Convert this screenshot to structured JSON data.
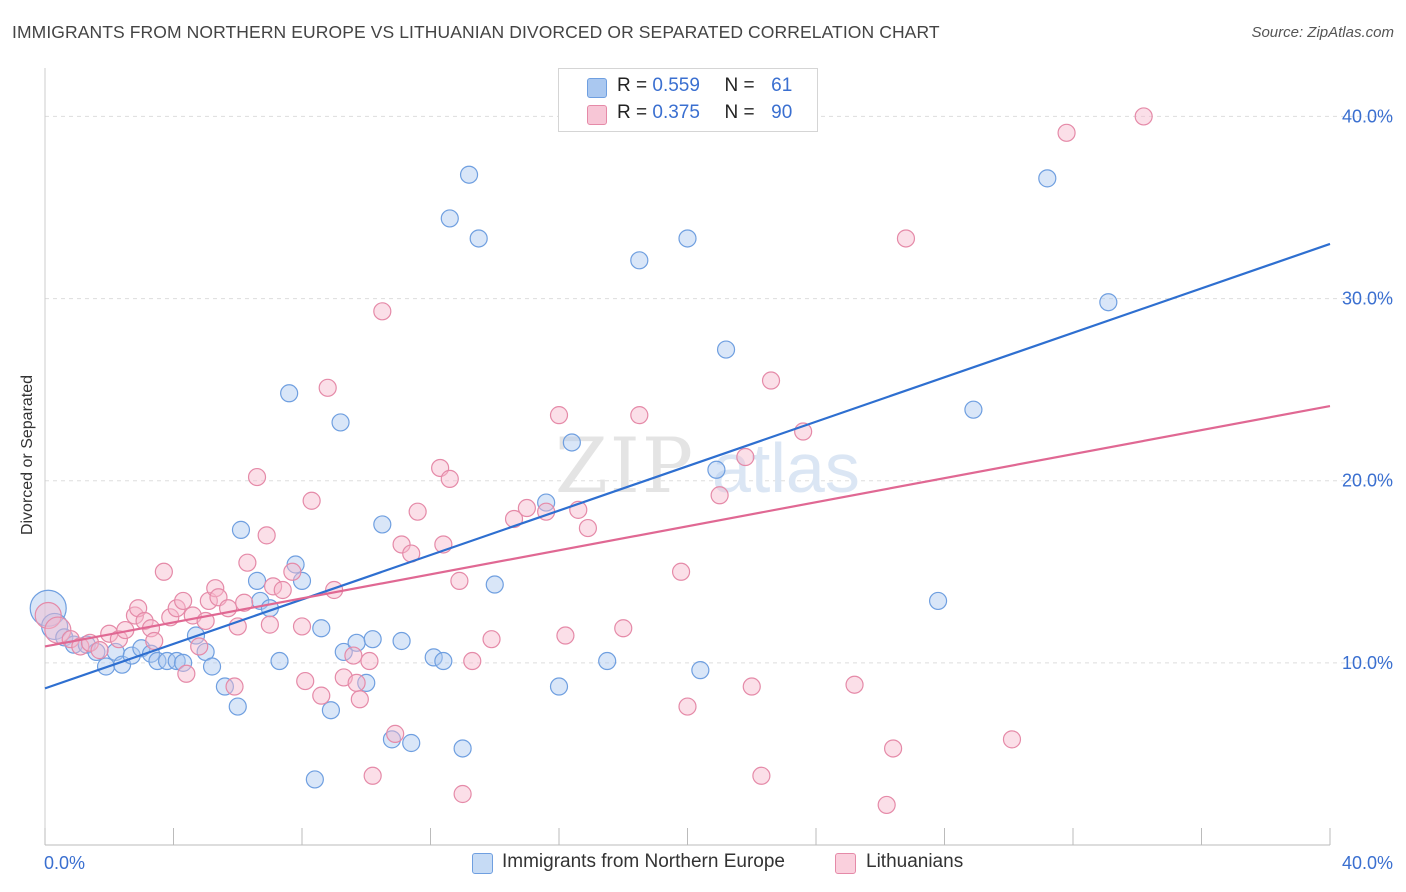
{
  "title": "IMMIGRANTS FROM NORTHERN EUROPE VS LITHUANIAN DIVORCED OR SEPARATED CORRELATION CHART",
  "source": "Source: ZipAtlas.com",
  "watermark": {
    "zip": "ZIP",
    "atlas": "atlas"
  },
  "legend": {
    "r_label": "R =",
    "n_label": "N =",
    "rows": [
      {
        "name": "Immigrants from Northern Europe",
        "r": "0.559",
        "n": "61",
        "color": "#aac8f0",
        "stroke": "#6f9fe0"
      },
      {
        "name": "Lithuanians",
        "r": "0.375",
        "n": "90",
        "color": "#f7b8cc",
        "stroke": "#e58aa8"
      }
    ]
  },
  "chart_data": {
    "type": "scatter",
    "title": "IMMIGRANTS FROM NORTHERN EUROPE VS LITHUANIAN DIVORCED OR SEPARATED CORRELATION CHART",
    "xlabel": "",
    "ylabel": "Divorced or Separated",
    "xlim": [
      0,
      40
    ],
    "ylim": [
      0,
      42
    ],
    "x_tick_labels": [
      "0.0%",
      "40.0%"
    ],
    "y_ticks": [
      10,
      20,
      30,
      40
    ],
    "y_tick_labels": [
      "10.0%",
      "20.0%",
      "30.0%",
      "40.0%"
    ],
    "grid": true,
    "legend_position": "top-center",
    "series": [
      {
        "name": "Immigrants from Northern Europe",
        "color": "#6f9fe0",
        "fill": "#aac8f0",
        "line_color": "#2e6fd0",
        "trend": {
          "x": [
            0,
            40
          ],
          "y": [
            8.6,
            33.0
          ]
        },
        "points": [
          [
            0.1,
            13.0,
            3
          ],
          [
            0.3,
            12.0,
            2
          ],
          [
            0.6,
            11.4,
            1
          ],
          [
            0.9,
            11.0,
            1
          ],
          [
            1.3,
            11.0,
            1
          ],
          [
            1.6,
            10.6,
            1
          ],
          [
            1.9,
            9.8,
            1
          ],
          [
            2.2,
            10.6,
            1
          ],
          [
            2.4,
            9.9,
            1
          ],
          [
            2.7,
            10.4,
            1
          ],
          [
            3.0,
            10.8,
            1
          ],
          [
            3.3,
            10.5,
            1
          ],
          [
            3.5,
            10.1,
            1
          ],
          [
            3.8,
            10.1,
            1
          ],
          [
            4.1,
            10.1,
            1
          ],
          [
            4.3,
            10.0,
            1
          ],
          [
            4.7,
            11.5,
            1
          ],
          [
            5.0,
            10.6,
            1
          ],
          [
            5.2,
            9.8,
            1
          ],
          [
            5.6,
            8.7,
            1
          ],
          [
            6.0,
            7.6,
            1
          ],
          [
            6.1,
            17.3,
            1
          ],
          [
            6.6,
            14.5,
            1
          ],
          [
            6.7,
            13.4,
            1
          ],
          [
            7.0,
            13.0,
            1
          ],
          [
            7.3,
            10.1,
            1
          ],
          [
            7.6,
            24.8,
            1
          ],
          [
            7.8,
            15.4,
            1
          ],
          [
            8.0,
            14.5,
            1
          ],
          [
            8.4,
            3.6,
            1
          ],
          [
            8.6,
            11.9,
            1
          ],
          [
            8.9,
            7.4,
            1
          ],
          [
            9.2,
            23.2,
            1
          ],
          [
            9.3,
            10.6,
            1
          ],
          [
            9.7,
            11.1,
            1
          ],
          [
            10.0,
            8.9,
            1
          ],
          [
            10.2,
            11.3,
            1
          ],
          [
            10.5,
            17.6,
            1
          ],
          [
            10.8,
            5.8,
            1
          ],
          [
            11.1,
            11.2,
            1
          ],
          [
            11.4,
            5.6,
            1
          ],
          [
            12.1,
            10.3,
            1
          ],
          [
            12.4,
            10.1,
            1
          ],
          [
            12.6,
            34.4,
            1
          ],
          [
            13.0,
            5.3,
            1
          ],
          [
            13.2,
            36.8,
            1
          ],
          [
            13.5,
            33.3,
            1
          ],
          [
            14.0,
            14.3,
            1
          ],
          [
            15.6,
            18.8,
            1
          ],
          [
            16.0,
            8.7,
            1
          ],
          [
            16.4,
            22.1,
            1
          ],
          [
            17.5,
            10.1,
            1
          ],
          [
            18.5,
            32.1,
            1
          ],
          [
            20.0,
            33.3,
            1
          ],
          [
            20.4,
            9.6,
            1
          ],
          [
            20.9,
            20.6,
            1
          ],
          [
            21.2,
            27.2,
            1
          ],
          [
            27.8,
            13.4,
            1
          ],
          [
            28.9,
            23.9,
            1
          ],
          [
            31.2,
            36.6,
            1
          ],
          [
            33.1,
            29.8,
            1
          ]
        ]
      },
      {
        "name": "Lithuanians",
        "color": "#e58aa8",
        "fill": "#f7b8cc",
        "line_color": "#e06893",
        "trend": {
          "x": [
            0,
            40
          ],
          "y": [
            10.9,
            24.1
          ]
        },
        "points": [
          [
            0.1,
            12.6,
            2
          ],
          [
            0.4,
            11.8,
            2
          ],
          [
            0.8,
            11.3,
            1
          ],
          [
            1.1,
            10.9,
            1
          ],
          [
            1.4,
            11.1,
            1
          ],
          [
            1.7,
            10.7,
            1
          ],
          [
            2.0,
            11.6,
            1
          ],
          [
            2.3,
            11.3,
            1
          ],
          [
            2.5,
            11.8,
            1
          ],
          [
            2.8,
            12.6,
            1
          ],
          [
            2.9,
            13.0,
            1
          ],
          [
            3.1,
            12.3,
            1
          ],
          [
            3.3,
            11.9,
            1
          ],
          [
            3.4,
            11.2,
            1
          ],
          [
            3.7,
            15.0,
            1
          ],
          [
            3.9,
            12.5,
            1
          ],
          [
            4.1,
            13.0,
            1
          ],
          [
            4.3,
            13.4,
            1
          ],
          [
            4.4,
            9.4,
            1
          ],
          [
            4.6,
            12.6,
            1
          ],
          [
            4.8,
            10.9,
            1
          ],
          [
            5.0,
            12.3,
            1
          ],
          [
            5.1,
            13.4,
            1
          ],
          [
            5.3,
            14.1,
            1
          ],
          [
            5.4,
            13.6,
            1
          ],
          [
            5.7,
            13.0,
            1
          ],
          [
            5.9,
            8.7,
            1
          ],
          [
            6.0,
            12.0,
            1
          ],
          [
            6.2,
            13.3,
            1
          ],
          [
            6.3,
            15.5,
            1
          ],
          [
            6.6,
            20.2,
            1
          ],
          [
            6.9,
            17.0,
            1
          ],
          [
            7.0,
            12.1,
            1
          ],
          [
            7.1,
            14.2,
            1
          ],
          [
            7.4,
            14.0,
            1
          ],
          [
            7.7,
            15.0,
            1
          ],
          [
            8.0,
            12.0,
            1
          ],
          [
            8.1,
            9.0,
            1
          ],
          [
            8.3,
            18.9,
            1
          ],
          [
            8.6,
            8.2,
            1
          ],
          [
            8.8,
            25.1,
            1
          ],
          [
            9.0,
            14.0,
            1
          ],
          [
            9.3,
            9.2,
            1
          ],
          [
            9.6,
            10.4,
            1
          ],
          [
            9.7,
            8.9,
            1
          ],
          [
            9.8,
            8.0,
            1
          ],
          [
            10.1,
            10.1,
            1
          ],
          [
            10.2,
            3.8,
            1
          ],
          [
            10.5,
            29.3,
            1
          ],
          [
            10.9,
            6.1,
            1
          ],
          [
            11.1,
            16.5,
            1
          ],
          [
            11.4,
            16.0,
            1
          ],
          [
            11.6,
            18.3,
            1
          ],
          [
            12.3,
            20.7,
            1
          ],
          [
            12.4,
            16.5,
            1
          ],
          [
            12.6,
            20.1,
            1
          ],
          [
            12.9,
            14.5,
            1
          ],
          [
            13.0,
            2.8,
            1
          ],
          [
            13.3,
            10.1,
            1
          ],
          [
            13.9,
            11.3,
            1
          ],
          [
            14.6,
            17.9,
            1
          ],
          [
            15.0,
            18.5,
            1
          ],
          [
            15.6,
            18.3,
            1
          ],
          [
            16.0,
            23.6,
            1
          ],
          [
            16.2,
            11.5,
            1
          ],
          [
            16.6,
            18.4,
            1
          ],
          [
            16.9,
            17.4,
            1
          ],
          [
            18.0,
            11.9,
            1
          ],
          [
            18.5,
            23.6,
            1
          ],
          [
            19.8,
            15.0,
            1
          ],
          [
            20.0,
            7.6,
            1
          ],
          [
            21.0,
            19.2,
            1
          ],
          [
            21.8,
            21.3,
            1
          ],
          [
            22.0,
            8.7,
            1
          ],
          [
            22.3,
            3.8,
            1
          ],
          [
            22.6,
            25.5,
            1
          ],
          [
            23.6,
            22.7,
            1
          ],
          [
            25.2,
            8.8,
            1
          ],
          [
            26.2,
            2.2,
            1
          ],
          [
            26.4,
            5.3,
            1
          ],
          [
            26.8,
            33.3,
            1
          ],
          [
            30.1,
            5.8,
            1
          ],
          [
            31.8,
            39.1,
            1
          ],
          [
            34.2,
            40.0,
            1
          ]
        ]
      }
    ]
  }
}
